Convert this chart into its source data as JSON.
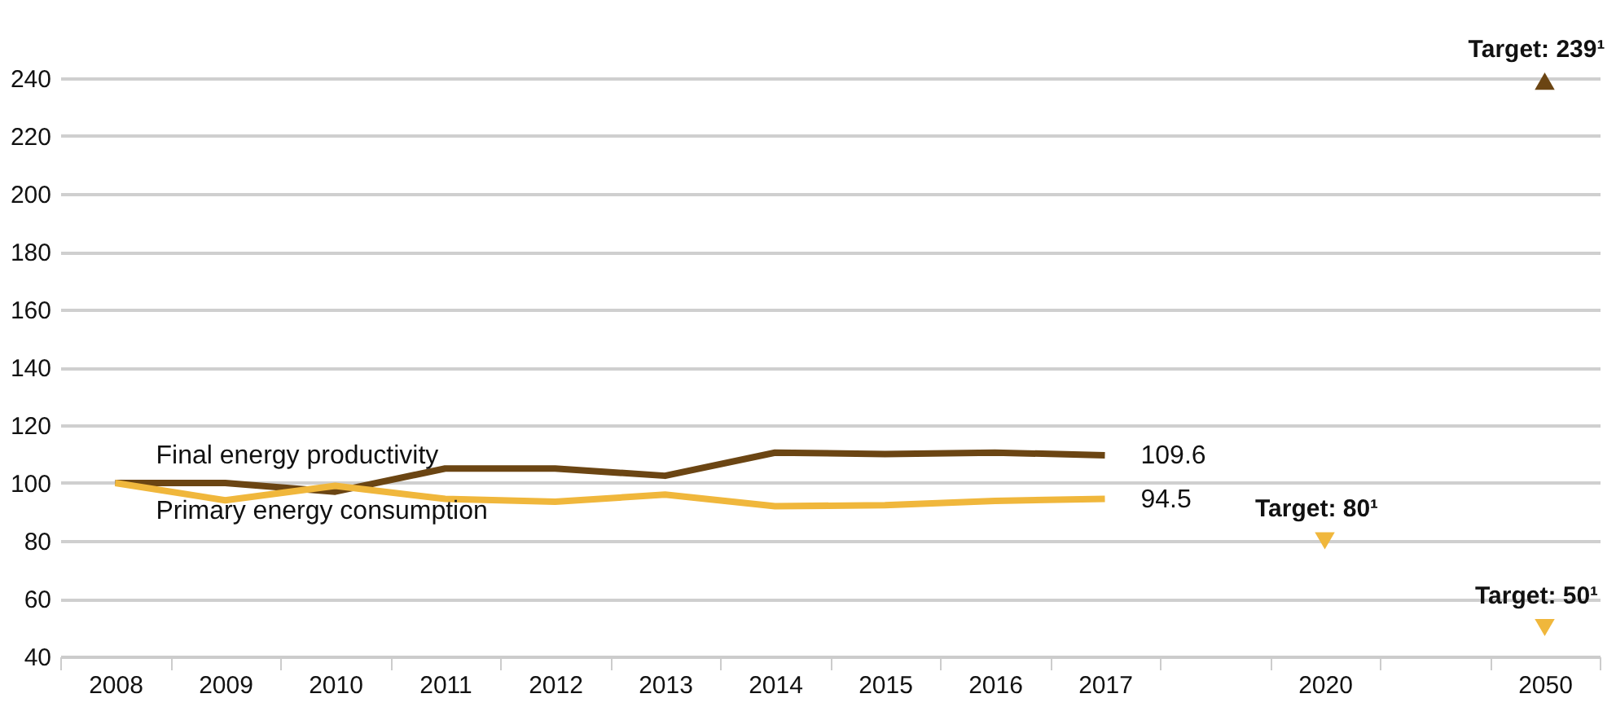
{
  "chart_data": {
    "type": "line",
    "categories": [
      "2008",
      "2009",
      "2010",
      "2011",
      "2012",
      "2013",
      "2014",
      "2015",
      "2016",
      "2017",
      null,
      "2020",
      null,
      "2050"
    ],
    "series": [
      {
        "name": "Final energy productivity",
        "color": "#6b4513",
        "values": [
          100,
          100,
          97,
          105,
          105,
          102.5,
          110.5,
          110,
          110.5,
          109.6,
          null,
          null,
          null,
          null
        ],
        "value_labels": [
          null,
          null,
          null,
          null,
          null,
          null,
          null,
          null,
          null,
          "109.6",
          null,
          null,
          null,
          null
        ]
      },
      {
        "name": "Primary energy consumption",
        "color": "#f0b73c",
        "values": [
          100,
          94,
          99,
          94.5,
          93.5,
          96,
          92,
          92.3,
          93.8,
          94.5,
          null,
          null,
          null,
          null
        ],
        "value_labels": [
          null,
          null,
          null,
          null,
          null,
          null,
          null,
          null,
          null,
          "94.5",
          null,
          null,
          null,
          null
        ]
      },
      {
        "type": "scatter",
        "marker": "triangle",
        "color": "#6b4513",
        "values": [
          null,
          null,
          null,
          null,
          null,
          null,
          null,
          null,
          null,
          null,
          null,
          null,
          null,
          239
        ]
      },
      {
        "type": "scatter",
        "marker": "triangle-down",
        "color": "#f0b73c",
        "values": [
          null,
          null,
          null,
          null,
          null,
          null,
          null,
          null,
          null,
          null,
          null,
          80,
          null,
          50
        ]
      }
    ],
    "annotations": [
      {
        "text": "Target: 239¹",
        "x": "2050",
        "y": 239
      },
      {
        "text": "Target: 80¹",
        "x": "2020",
        "y": 80
      },
      {
        "text": "Target: 50¹",
        "x": "2050",
        "y": 50
      }
    ],
    "ylim": [
      40,
      240
    ],
    "yticks": [
      40,
      60,
      80,
      100,
      120,
      140,
      160,
      180,
      200,
      220,
      240
    ],
    "grid": "y",
    "line_style": "solid"
  }
}
